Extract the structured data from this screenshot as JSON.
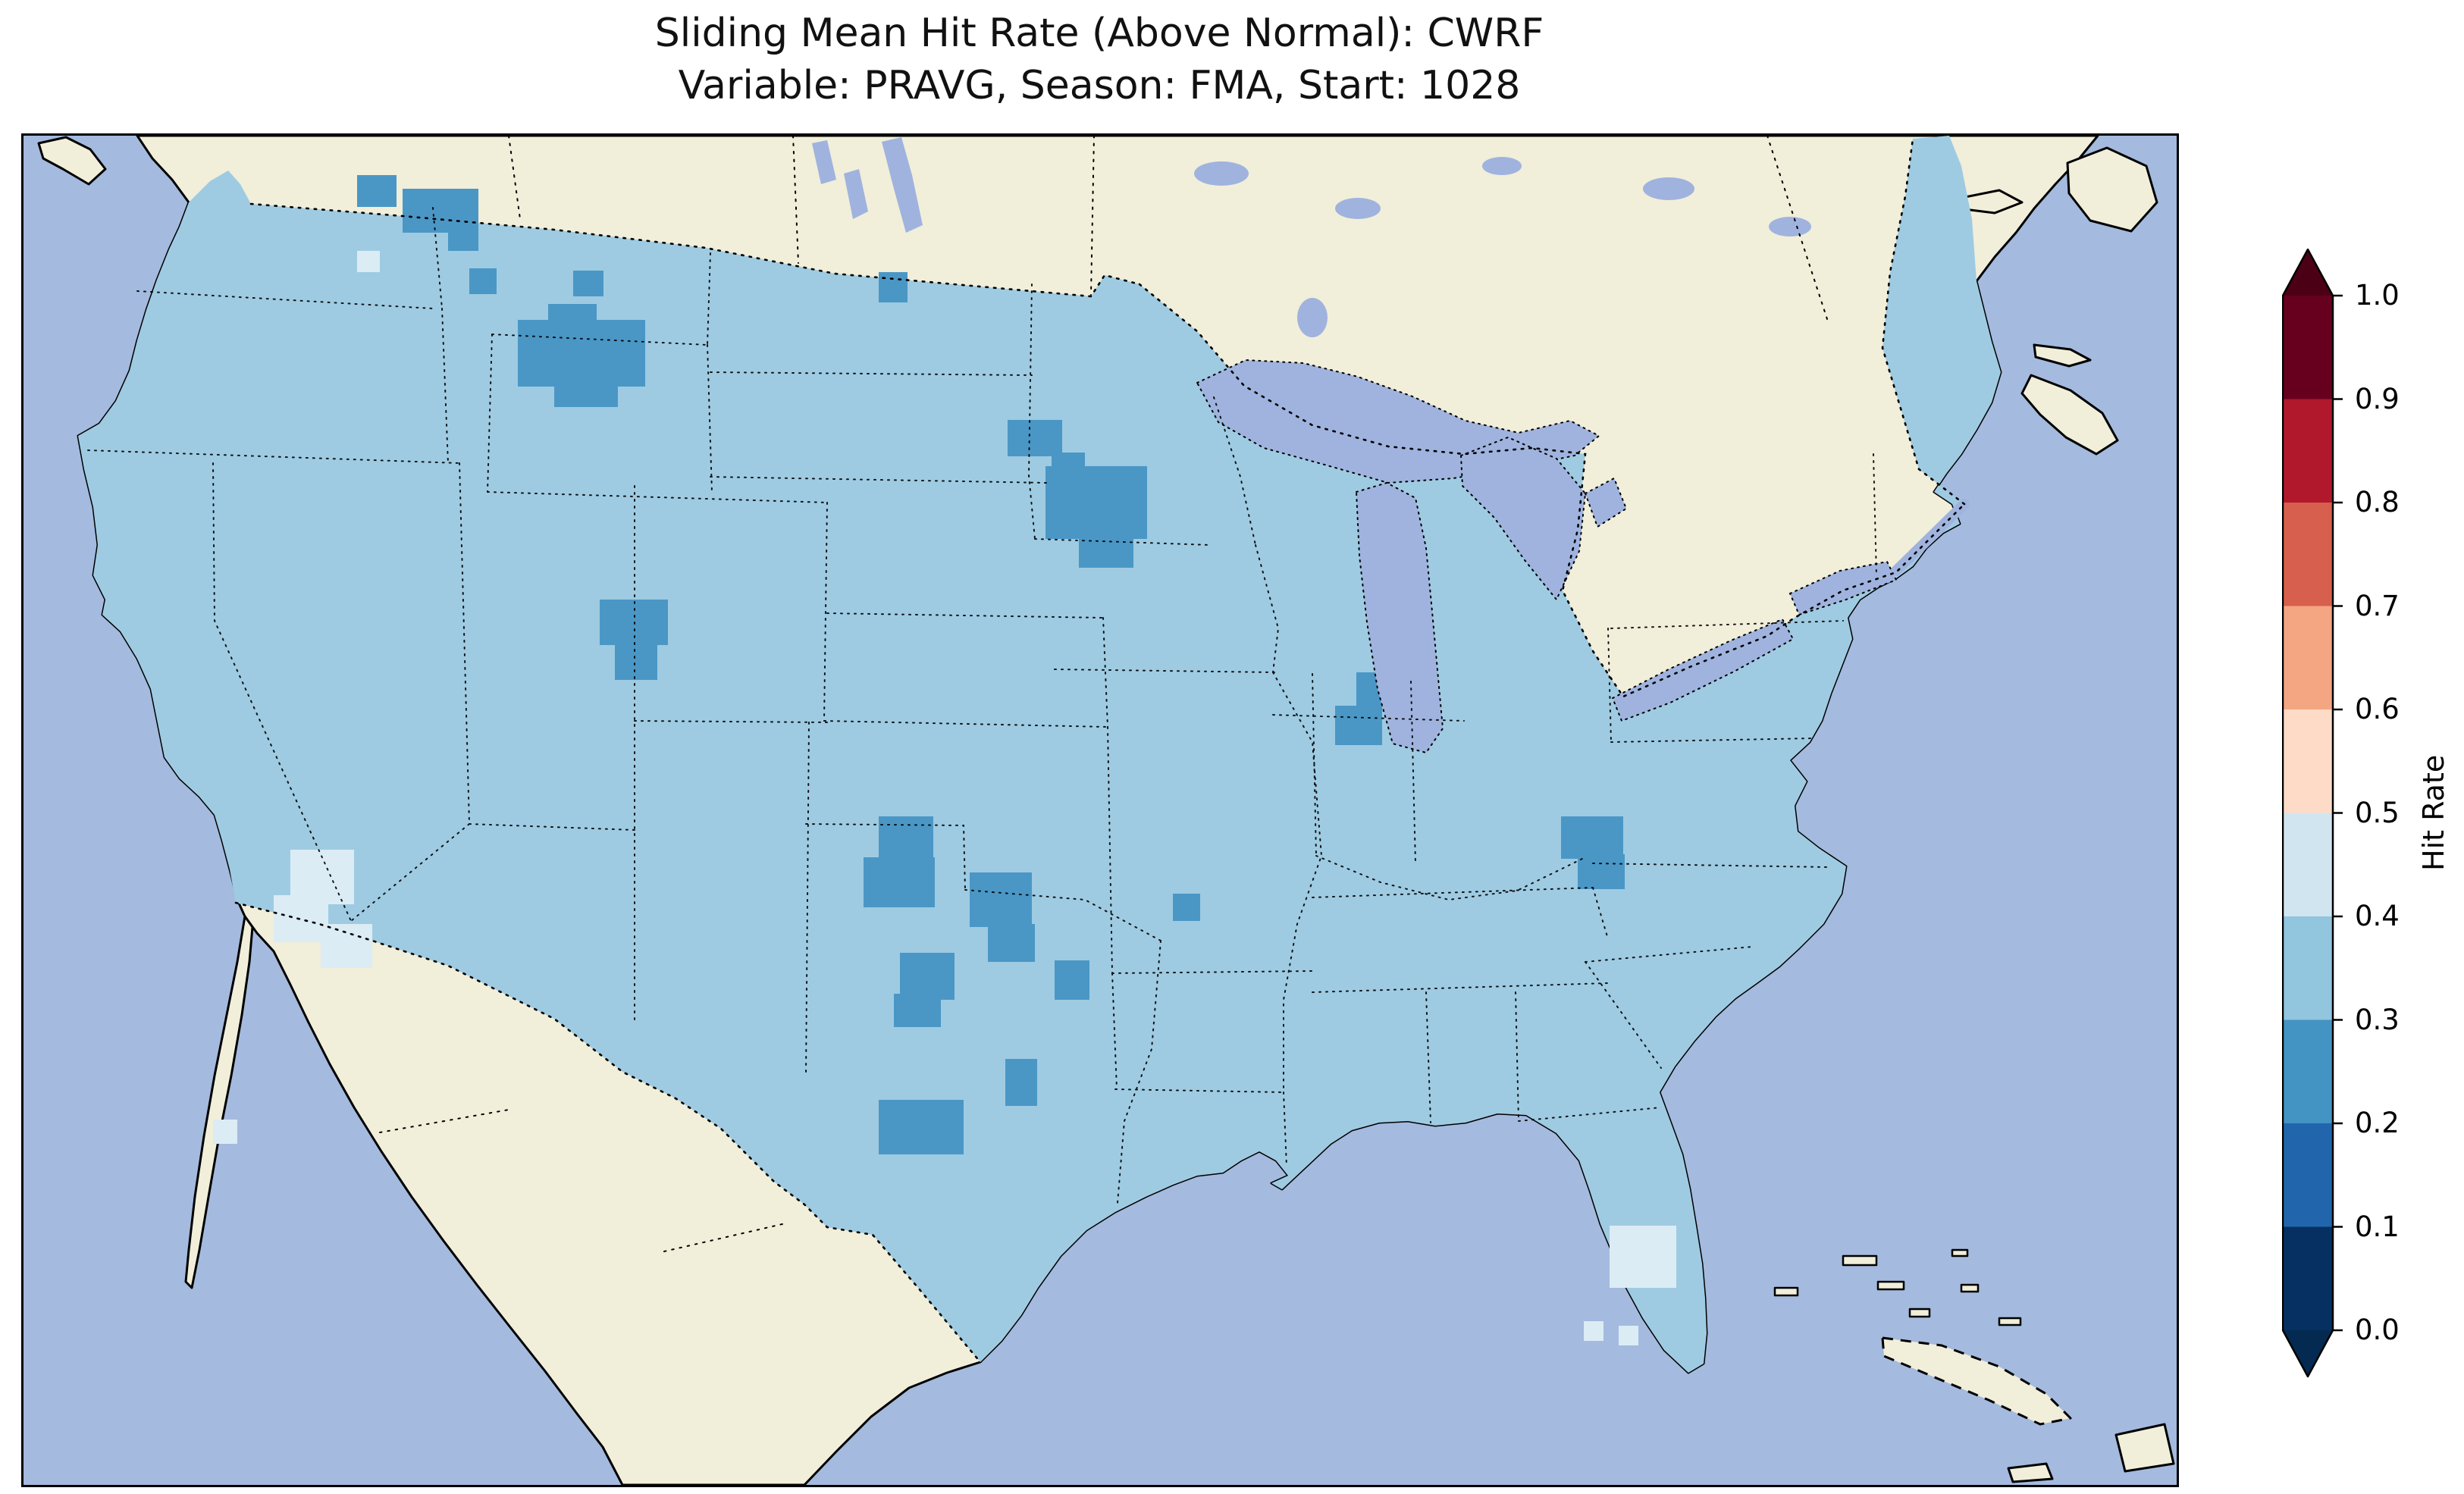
{
  "title": {
    "line1": "Sliding Mean Hit Rate (Above Normal): CWRF",
    "line2": "Variable: PRAVG, Season: FMA, Start: 1028"
  },
  "chart_data": {
    "type": "heatmap",
    "title": "Sliding Mean Hit Rate (Above Normal): CWRF",
    "subtitle": "Variable: PRAVG, Season: FMA, Start: 1028",
    "metric": "Hit Rate (Above Normal)",
    "model": "CWRF",
    "variable": "PRAVG",
    "season": "FMA",
    "start": "1028",
    "region": "Contiguous United States",
    "value_range": [
      0.0,
      1.0
    ],
    "bin_width": 0.1,
    "legend_position": "right",
    "grid": false,
    "colorbar": {
      "label": "Hit Rate",
      "orientation": "vertical",
      "extend": "both",
      "ticks": [
        "1.0",
        "0.9",
        "0.8",
        "0.7",
        "0.6",
        "0.5",
        "0.4",
        "0.3",
        "0.2",
        "0.1",
        "0.0"
      ],
      "colors_top_to_bottom": [
        "#67001f",
        "#b2182b",
        "#d6604d",
        "#f4a582",
        "#fddbc7",
        "#d1e5f0",
        "#92c5de",
        "#4393c3",
        "#2166ac",
        "#053061"
      ],
      "over_arrow_color": "#4c0016",
      "under_arrow_color": "#042a52"
    },
    "map_reading": {
      "predominant_bin": "0.3-0.4",
      "low_bin_patches": [
        {
          "area": "northwest Montana / Idaho border",
          "bin": "0.2-0.3"
        },
        {
          "area": "central Montana",
          "bin": "0.2-0.3"
        },
        {
          "area": "northern North Dakota (small)",
          "bin": "0.2-0.3"
        },
        {
          "area": "central Minnesota",
          "bin": "0.2-0.3"
        },
        {
          "area": "eastern Minnesota / western Wisconsin",
          "bin": "0.2-0.3"
        },
        {
          "area": "northeastern Utah",
          "bin": "0.2-0.3"
        },
        {
          "area": "central Indiana",
          "bin": "0.2-0.3"
        },
        {
          "area": "southern Kansas / northern Oklahoma",
          "bin": "0.2-0.3"
        },
        {
          "area": "eastern Oklahoma",
          "bin": "0.2-0.3"
        },
        {
          "area": "north-central Texas",
          "bin": "0.2-0.3"
        },
        {
          "area": "central Texas (small)",
          "bin": "0.2-0.3"
        },
        {
          "area": "southwest Texas",
          "bin": "0.2-0.3"
        },
        {
          "area": "southeast Missouri (small)",
          "bin": "0.2-0.3"
        },
        {
          "area": "northwest South Carolina",
          "bin": "0.2-0.3"
        }
      ],
      "high_bin_patches": [
        {
          "area": "southwestern Arizona",
          "bin": "0.4-0.5"
        },
        {
          "area": "southern Florida",
          "bin": "0.4-0.5"
        }
      ]
    },
    "map_colors": {
      "ocean": "#a4bade",
      "land_outside_domain": "#f1eeda",
      "base_fill": "#9ecbe2",
      "low_patch": "#4a97c6",
      "high_patch": "#dcecf5",
      "coastline": "#000000"
    }
  }
}
